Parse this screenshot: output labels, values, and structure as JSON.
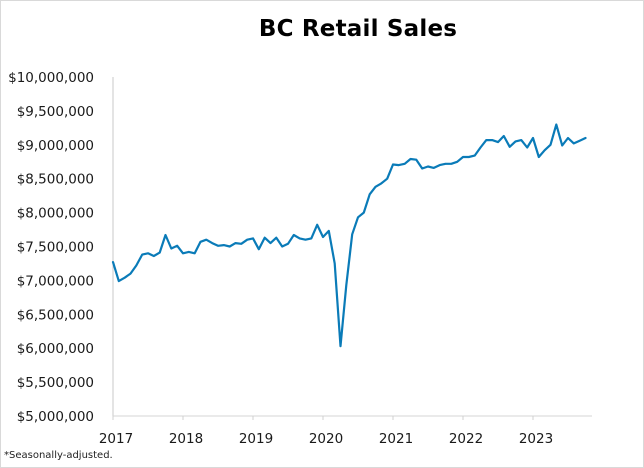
{
  "chart_data": {
    "type": "line",
    "title": "BC Retail Sales",
    "xlabel": "",
    "ylabel": "",
    "footnote": "*Seasonally-adjusted.",
    "ylim": [
      5000000,
      10000000
    ],
    "yticks": [
      "$10,000,000",
      "$9,500,000",
      "$9,000,000",
      "$8,500,000",
      "$8,000,000",
      "$7,500,000",
      "$7,000,000",
      "$6,500,000",
      "$6,000,000",
      "$5,500,000",
      "$5,000,000"
    ],
    "xticks": [
      "2017",
      "2018",
      "2019",
      "2020",
      "2021",
      "2022",
      "2023"
    ],
    "grid": false,
    "legend": null,
    "line_color": "#0a7bb8",
    "x_start": "2017-01",
    "x_frequency": "monthly",
    "series": [
      {
        "name": "BC Retail Sales",
        "values": [
          7270000,
          6990000,
          7040000,
          7100000,
          7220000,
          7380000,
          7400000,
          7360000,
          7410000,
          7670000,
          7470000,
          7510000,
          7400000,
          7420000,
          7400000,
          7570000,
          7600000,
          7550000,
          7510000,
          7520000,
          7500000,
          7550000,
          7540000,
          7600000,
          7620000,
          7460000,
          7630000,
          7550000,
          7630000,
          7500000,
          7540000,
          7670000,
          7620000,
          7600000,
          7620000,
          7820000,
          7640000,
          7730000,
          7250000,
          6030000,
          6930000,
          7680000,
          7930000,
          8000000,
          8270000,
          8380000,
          8430000,
          8500000,
          8710000,
          8700000,
          8720000,
          8790000,
          8780000,
          8650000,
          8680000,
          8660000,
          8700000,
          8720000,
          8720000,
          8750000,
          8820000,
          8820000,
          8840000,
          8960000,
          9070000,
          9070000,
          9040000,
          9130000,
          8970000,
          9050000,
          9070000,
          8960000,
          9100000,
          8820000,
          8920000,
          9000000,
          9300000,
          8990000,
          9100000,
          9020000,
          9060000,
          9100000
        ]
      }
    ]
  },
  "page": {
    "title": "BC Retail Sales",
    "footnote": "*Seasonally-adjusted."
  }
}
